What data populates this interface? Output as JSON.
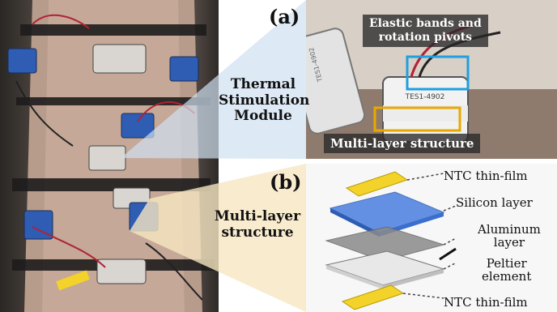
{
  "panel_a": {
    "letter": "(a)",
    "callouts": {
      "elastic": "Elastic bands and\nrotation pivots",
      "multilayer": "Multi-layer structure"
    },
    "device_text_1": "TES1-4902",
    "device_text_2": "TES1-4902"
  },
  "panel_b": {
    "letter": "(b)",
    "components": {
      "ntc_top": "NTC thin-film",
      "silicon": "Silicon layer",
      "aluminum": "Aluminum\nlayer",
      "peltier": "Peltier\nelement",
      "ntc_bottom": "NTC thin-film"
    }
  },
  "left_labels": {
    "thermal_module": "Thermal\nStimulation\nModule",
    "multilayer_structure": "Multi-layer\nstructure"
  },
  "colors": {
    "blue_funnel": "#cfe0f0",
    "yellow_funnel": "#f6e6c2",
    "blue_box": "#1ea0e0",
    "yellow_box": "#e8a800",
    "ntc_yellow": "#f3d22a",
    "silicon_blue": "#4a7fe0",
    "aluminum_gray": "#8a8a8a",
    "peltier_light": "#e8e8e8"
  }
}
